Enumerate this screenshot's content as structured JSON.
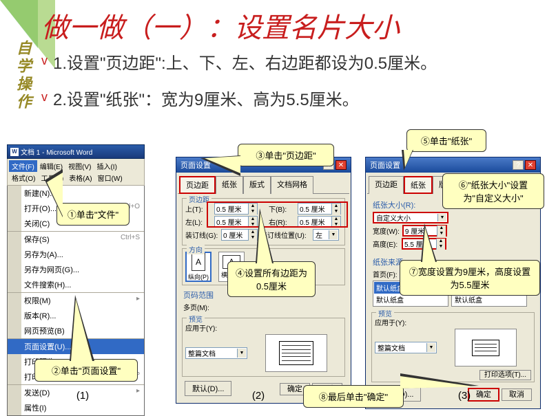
{
  "title": "做一做（一）：设置名片大小",
  "side_label": "自学操作",
  "instructions": [
    "1.设置\"页边距\":上、下、左、右边距都设为0.5厘米。",
    "2.设置\"纸张\"：宽为9厘米、高为5.5厘米。"
  ],
  "word": {
    "title": "文档 1 - Microsoft Word",
    "menus": [
      "文件(F)",
      "编辑(E)",
      "视图(V)",
      "插入(I)",
      "格式(O)",
      "工具(T)",
      "表格(A)",
      "窗口(W)"
    ],
    "menu_hl": "文件(F)",
    "items": [
      {
        "t": "新建(N)...",
        "sc": "",
        "sep": false
      },
      {
        "t": "打开(O)...",
        "sc": "Ctrl+O",
        "sep": false
      },
      {
        "t": "关闭(C)",
        "sc": "",
        "sep": false
      },
      {
        "t": "保存(S)",
        "sc": "Ctrl+S",
        "sep": true
      },
      {
        "t": "另存为(A)...",
        "sc": "",
        "sep": false
      },
      {
        "t": "另存为网页(G)...",
        "sc": "",
        "sep": false
      },
      {
        "t": "文件搜索(H)...",
        "sc": "",
        "sep": false
      },
      {
        "t": "权限(M)",
        "sc": "▸",
        "sep": true
      },
      {
        "t": "版本(R)...",
        "sc": "",
        "sep": false
      },
      {
        "t": "网页预览(B)",
        "sc": "",
        "sep": false
      },
      {
        "t": "页面设置(U)...",
        "sc": "",
        "sep": true,
        "hl": true
      },
      {
        "t": "打印预览(V)",
        "sc": "",
        "sep": false
      },
      {
        "t": "打印(P)...",
        "sc": "Ctrl+P",
        "sep": false
      },
      {
        "t": "发送(D)",
        "sc": "▸",
        "sep": true
      },
      {
        "t": "属性(I)",
        "sc": "",
        "sep": false
      }
    ]
  },
  "callouts": {
    "c1": "①单击\"文件\"",
    "c2": "②单击\"页面设置\"",
    "c3": "③单击\"页边距\"",
    "c4": "④设置所有边距为0.5厘米",
    "c5": "⑤单击\"纸张\"",
    "c6": "⑥\"纸张大小\"设置为\"自定义大小\"",
    "c7": "⑦宽度设置为9厘米，高度设置为5.5厘米",
    "c8": "⑧最后单击\"确定\""
  },
  "dlg1": {
    "title": "页面设置",
    "tabs": [
      "页边距",
      "纸张",
      "版式",
      "文档网格"
    ],
    "active_tab": 0,
    "margins": {
      "title": "页边距",
      "top_l": "上(T):",
      "top_v": "0.5 厘米",
      "bot_l": "下(B):",
      "bot_v": "0.5 厘米",
      "left_l": "左(L):",
      "left_v": "0.5 厘米",
      "right_l": "右(R):",
      "right_v": "0.5 厘米",
      "gutter_l": "装订线(G):",
      "gutter_v": "0 厘米",
      "gutterpos_l": "装订线位置(U):",
      "gutterpos_v": "左"
    },
    "orient": {
      "title": "方向",
      "port": "纵向(P)",
      "land": "横向(S)"
    },
    "pages": {
      "title": "页码范围",
      "multi_l": "多页(M):",
      "multi_v": "普通"
    },
    "preview": {
      "title": "预览",
      "apply_l": "应用于(Y):",
      "apply_v": "整篇文档"
    },
    "def_btn": "默认(D)...",
    "ok": "确定",
    "cancel": "取消"
  },
  "dlg2": {
    "title": "页面设置",
    "tabs": [
      "页边距",
      "纸张",
      "版式",
      "文档网格"
    ],
    "active_tab": 1,
    "paper": {
      "title": "纸张大小(R):",
      "size_v": "自定义大小",
      "width_l": "宽度(W):",
      "width_v": "9 厘米",
      "height_l": "高度(E):",
      "height_v": "5.5 厘米"
    },
    "source": {
      "title": "纸张来源",
      "first_l": "首页(F):",
      "other_l": "其他页(O):",
      "opts": [
        "默认纸盒 (自动)",
        "默认纸盒"
      ],
      "sel": "默认纸盒 (自动)"
    },
    "preview": {
      "title": "预览",
      "apply_l": "应用于(Y):",
      "apply_v": "整篇文档"
    },
    "print_opt": "打印选项(T)...",
    "def_btn": "默认(D)...",
    "ok": "确定",
    "cancel": "取消"
  },
  "step_labels": [
    "(1)",
    "(2)",
    "(3)"
  ],
  "colors": {
    "title": "#c81e1e",
    "callout_bg": "#ffffc0",
    "hl": "#c00",
    "dlg_bg": "#ece9d8",
    "title_grad1": "#4a7ac8"
  }
}
